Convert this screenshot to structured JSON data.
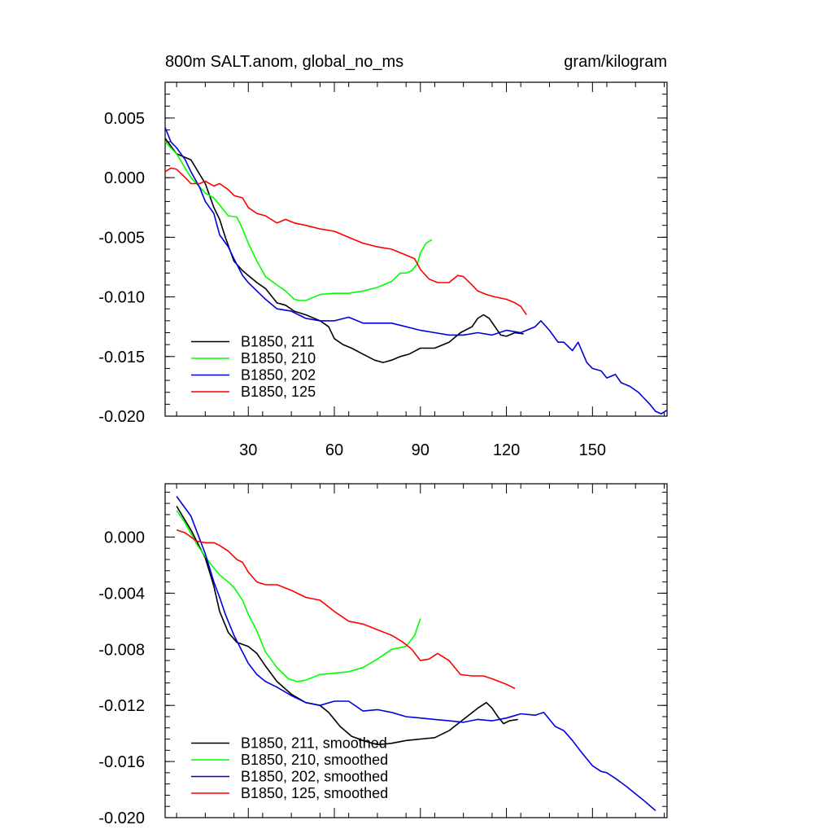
{
  "colors": {
    "B1850_211": "#000000",
    "B1850_210": "#00ff00",
    "B1850_202": "#0000dd",
    "B1850_125": "#ff0000"
  },
  "chart_data": [
    {
      "type": "line",
      "title": "800m SALT.anom, global_no_ms",
      "units": "gram/kilogram",
      "xlabel": "",
      "ylabel": "",
      "xlim": [
        1,
        176
      ],
      "ylim": [
        -0.02,
        0.008
      ],
      "xticks": [
        30,
        60,
        90,
        120,
        150
      ],
      "xtick_labels": [
        "30",
        "60",
        "90",
        "120",
        "150"
      ],
      "yticks": [
        0.005,
        0.0,
        -0.005,
        -0.01,
        -0.015,
        -0.02
      ],
      "ytick_labels": [
        "0.005",
        "0.000",
        "-0.005",
        "-0.010",
        "-0.015",
        "-0.020"
      ],
      "grid": false,
      "legend_position": "bottom-left",
      "series": [
        {
          "name": "B1850, 211",
          "color_key": "B1850_211",
          "x": [
            1,
            5,
            10,
            15,
            18,
            20,
            22,
            25,
            28,
            30,
            33,
            36,
            40,
            43,
            46,
            50,
            55,
            58,
            60,
            63,
            66,
            70,
            74,
            77,
            80,
            83,
            86,
            90,
            95,
            98,
            100,
            104,
            108,
            110,
            112,
            114,
            116,
            118,
            120,
            123,
            126
          ],
          "y": [
            0.0033,
            0.002,
            0.0015,
            -0.0005,
            -0.0025,
            -0.0035,
            -0.005,
            -0.007,
            -0.0078,
            -0.0082,
            -0.0088,
            -0.0093,
            -0.0105,
            -0.0107,
            -0.0112,
            -0.0115,
            -0.012,
            -0.0125,
            -0.0135,
            -0.014,
            -0.0143,
            -0.0148,
            -0.0153,
            -0.0155,
            -0.0153,
            -0.015,
            -0.0148,
            -0.0143,
            -0.0143,
            -0.014,
            -0.0138,
            -0.013,
            -0.0125,
            -0.0118,
            -0.0115,
            -0.0118,
            -0.0125,
            -0.0132,
            -0.0133,
            -0.013,
            -0.0131
          ]
        },
        {
          "name": "B1850, 210",
          "color_key": "B1850_210",
          "x": [
            1,
            5,
            10,
            15,
            18,
            20,
            23,
            26,
            28,
            30,
            33,
            36,
            40,
            43,
            46,
            48,
            50,
            55,
            60,
            65,
            70,
            75,
            80,
            83,
            85,
            87,
            89,
            90,
            92,
            94
          ],
          "y": [
            0.003,
            0.002,
            0.0,
            -0.0013,
            -0.0017,
            -0.0023,
            -0.0032,
            -0.0033,
            -0.0043,
            -0.0055,
            -0.007,
            -0.0083,
            -0.009,
            -0.0095,
            -0.0102,
            -0.0103,
            -0.0103,
            -0.0098,
            -0.0097,
            -0.0097,
            -0.0095,
            -0.0092,
            -0.0087,
            -0.008,
            -0.008,
            -0.0078,
            -0.0072,
            -0.0063,
            -0.0055,
            -0.0052
          ]
        },
        {
          "name": "B1850, 202",
          "color_key": "B1850_202",
          "x": [
            1,
            3,
            5,
            8,
            10,
            13,
            15,
            18,
            20,
            23,
            25,
            28,
            30,
            33,
            36,
            40,
            45,
            50,
            55,
            60,
            65,
            70,
            75,
            80,
            85,
            90,
            95,
            100,
            105,
            110,
            115,
            120,
            125,
            130,
            132,
            135,
            138,
            140,
            143,
            145,
            148,
            150,
            153,
            155,
            158,
            160,
            163,
            166,
            168,
            170,
            172,
            174,
            176
          ],
          "y": [
            0.0042,
            0.003,
            0.0025,
            0.0015,
            0.0005,
            -0.0008,
            -0.002,
            -0.003,
            -0.0048,
            -0.0058,
            -0.0068,
            -0.0082,
            -0.0088,
            -0.0095,
            -0.0102,
            -0.011,
            -0.0112,
            -0.0118,
            -0.012,
            -0.012,
            -0.0117,
            -0.0122,
            -0.0122,
            -0.0122,
            -0.0125,
            -0.0128,
            -0.013,
            -0.0132,
            -0.0132,
            -0.013,
            -0.0132,
            -0.0128,
            -0.013,
            -0.0125,
            -0.012,
            -0.0128,
            -0.0138,
            -0.0138,
            -0.0145,
            -0.0138,
            -0.0155,
            -0.016,
            -0.0162,
            -0.0168,
            -0.0165,
            -0.0172,
            -0.0175,
            -0.018,
            -0.0185,
            -0.019,
            -0.0196,
            -0.0198,
            -0.0195
          ]
        },
        {
          "name": "B1850, 125",
          "color_key": "B1850_125",
          "x": [
            1,
            3,
            5,
            8,
            10,
            13,
            15,
            18,
            20,
            23,
            25,
            28,
            30,
            33,
            36,
            40,
            43,
            46,
            50,
            55,
            60,
            65,
            70,
            75,
            80,
            83,
            85,
            88,
            90,
            93,
            96,
            100,
            103,
            105,
            108,
            110,
            113,
            116,
            120,
            123,
            125,
            127
          ],
          "y": [
            0.0005,
            0.0008,
            0.0007,
            0.0,
            -0.0005,
            -0.0005,
            -0.0003,
            -0.0007,
            -0.0005,
            -0.001,
            -0.0015,
            -0.0017,
            -0.0025,
            -0.003,
            -0.0032,
            -0.0038,
            -0.0035,
            -0.0038,
            -0.004,
            -0.0043,
            -0.0045,
            -0.005,
            -0.0055,
            -0.0058,
            -0.006,
            -0.0063,
            -0.0065,
            -0.0068,
            -0.0077,
            -0.0085,
            -0.0088,
            -0.0088,
            -0.0082,
            -0.0083,
            -0.009,
            -0.0095,
            -0.0098,
            -0.01,
            -0.0102,
            -0.0105,
            -0.0108,
            -0.0115
          ]
        }
      ]
    },
    {
      "type": "line",
      "title": "",
      "xlabel": "",
      "ylabel": "",
      "xlim": [
        1,
        176
      ],
      "ylim": [
        -0.02,
        0.0038
      ],
      "xticks": [
        30,
        60,
        90,
        120,
        150
      ],
      "xtick_labels": [],
      "yticks": [
        0.0,
        -0.004,
        -0.008,
        -0.012,
        -0.016,
        -0.02
      ],
      "ytick_labels": [
        "0.000",
        "-0.004",
        "-0.008",
        "-0.012",
        "-0.016",
        "-0.020"
      ],
      "grid": false,
      "legend_position": "bottom-left",
      "series": [
        {
          "name": "B1850, 211, smoothed",
          "color_key": "B1850_211",
          "x": [
            5,
            10,
            15,
            18,
            20,
            23,
            26,
            30,
            33,
            36,
            40,
            45,
            50,
            55,
            58,
            62,
            66,
            70,
            75,
            80,
            85,
            90,
            95,
            100,
            105,
            110,
            113,
            115,
            117,
            119,
            121,
            124
          ],
          "y": [
            0.0022,
            0.0005,
            -0.0015,
            -0.0035,
            -0.0053,
            -0.0068,
            -0.0075,
            -0.0078,
            -0.0083,
            -0.0092,
            -0.0103,
            -0.0112,
            -0.0118,
            -0.012,
            -0.0125,
            -0.0135,
            -0.0142,
            -0.0145,
            -0.0148,
            -0.0147,
            -0.0145,
            -0.0144,
            -0.0143,
            -0.0138,
            -0.013,
            -0.0122,
            -0.0118,
            -0.0122,
            -0.0128,
            -0.0133,
            -0.0131,
            -0.013
          ]
        },
        {
          "name": "B1850, 210, smoothed",
          "color_key": "B1850_210",
          "x": [
            5,
            8,
            12,
            16,
            20,
            23,
            25,
            28,
            30,
            33,
            36,
            40,
            44,
            47,
            50,
            55,
            60,
            65,
            70,
            75,
            80,
            85,
            88,
            90
          ],
          "y": [
            0.0019,
            0.001,
            -0.0005,
            -0.0017,
            -0.0027,
            -0.0032,
            -0.0036,
            -0.0045,
            -0.0055,
            -0.0067,
            -0.0082,
            -0.0093,
            -0.0101,
            -0.0103,
            -0.0102,
            -0.0098,
            -0.0097,
            -0.0096,
            -0.0093,
            -0.0087,
            -0.008,
            -0.0078,
            -0.007,
            -0.0058
          ]
        },
        {
          "name": "B1850, 202, smoothed",
          "color_key": "B1850_202",
          "x": [
            5,
            10,
            15,
            18,
            20,
            22,
            25,
            28,
            30,
            33,
            36,
            40,
            45,
            50,
            55,
            60,
            65,
            70,
            75,
            80,
            85,
            90,
            95,
            100,
            105,
            110,
            115,
            120,
            125,
            130,
            133,
            137,
            140,
            143,
            146,
            150,
            153,
            155,
            158,
            162,
            165,
            168,
            172
          ],
          "y": [
            0.0029,
            0.0015,
            -0.0012,
            -0.0032,
            -0.0043,
            -0.0055,
            -0.007,
            -0.0082,
            -0.009,
            -0.0098,
            -0.0103,
            -0.0107,
            -0.0113,
            -0.0118,
            -0.012,
            -0.0117,
            -0.0117,
            -0.0124,
            -0.0123,
            -0.0125,
            -0.0128,
            -0.0129,
            -0.013,
            -0.0131,
            -0.0132,
            -0.013,
            -0.0131,
            -0.0129,
            -0.0126,
            -0.0127,
            -0.0125,
            -0.0135,
            -0.0138,
            -0.0145,
            -0.0153,
            -0.0163,
            -0.0167,
            -0.0168,
            -0.0172,
            -0.0178,
            -0.0183,
            -0.0188,
            -0.0195
          ]
        },
        {
          "name": "B1850, 125, smoothed",
          "color_key": "B1850_125",
          "x": [
            5,
            8,
            12,
            15,
            18,
            20,
            23,
            26,
            28,
            30,
            33,
            36,
            40,
            45,
            50,
            55,
            60,
            65,
            70,
            75,
            80,
            84,
            87,
            90,
            93,
            96,
            100,
            104,
            108,
            112,
            115,
            120,
            123
          ],
          "y": [
            0.0005,
            0.0003,
            -0.0003,
            -0.0004,
            -0.0004,
            -0.0006,
            -0.001,
            -0.0016,
            -0.0018,
            -0.0025,
            -0.0032,
            -0.0034,
            -0.0034,
            -0.0038,
            -0.0043,
            -0.0045,
            -0.0053,
            -0.006,
            -0.0062,
            -0.0066,
            -0.007,
            -0.0075,
            -0.008,
            -0.0088,
            -0.0087,
            -0.0083,
            -0.0088,
            -0.0098,
            -0.0099,
            -0.0099,
            -0.0101,
            -0.0105,
            -0.0108
          ]
        }
      ]
    }
  ]
}
